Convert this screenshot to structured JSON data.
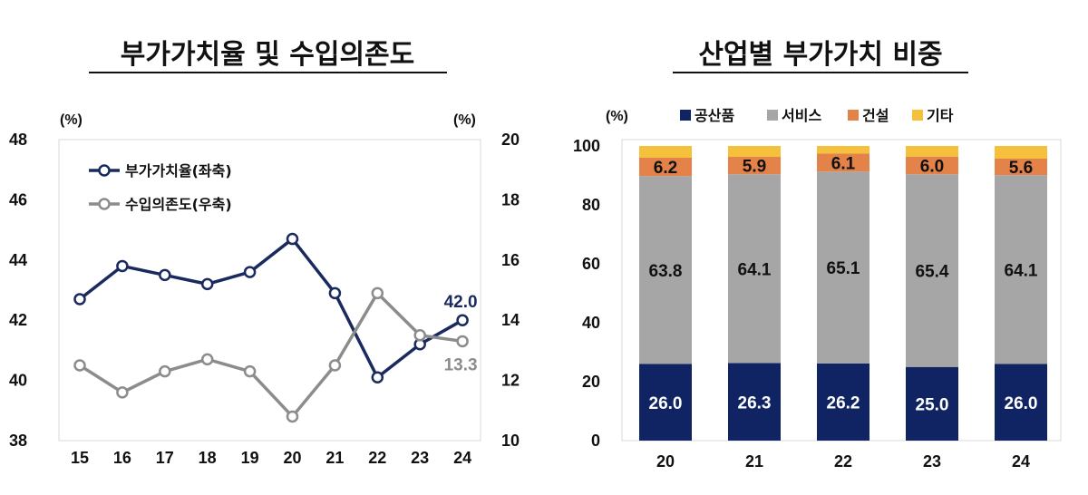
{
  "chart_data": [
    {
      "type": "line",
      "title": "부가가치율 및 수입의존도",
      "categories": [
        "15",
        "16",
        "17",
        "18",
        "19",
        "20",
        "21",
        "22",
        "23",
        "24"
      ],
      "left_axis": {
        "unit": "(%)",
        "ylim": [
          38,
          48
        ],
        "ticks": [
          "38",
          "40",
          "42",
          "44",
          "46",
          "48"
        ]
      },
      "right_axis": {
        "unit": "(%)",
        "ylim": [
          10,
          20
        ],
        "ticks": [
          "10",
          "12",
          "14",
          "16",
          "18",
          "20"
        ]
      },
      "series": [
        {
          "name": "부가가치율(좌축)",
          "axis": "left",
          "color": "#1b2a5e",
          "values": [
            42.7,
            43.8,
            43.5,
            43.2,
            43.6,
            44.7,
            42.9,
            40.1,
            41.2,
            42.0
          ],
          "end_label": "42.0"
        },
        {
          "name": "수입의존도(우축)",
          "axis": "right",
          "color": "#8c8c8c",
          "values": [
            12.5,
            11.6,
            12.3,
            12.7,
            12.3,
            10.8,
            12.5,
            14.9,
            13.5,
            13.3
          ],
          "end_label": "13.3"
        }
      ],
      "legend_placement": "top-left",
      "grid": false
    },
    {
      "type": "bar",
      "stacked": true,
      "title": "산업별 부가가치 비중",
      "categories": [
        "20",
        "21",
        "22",
        "23",
        "24"
      ],
      "y_axis": {
        "unit": "(%)",
        "ylim": [
          0,
          100
        ],
        "ticks": [
          "0",
          "20",
          "40",
          "60",
          "80",
          "100"
        ]
      },
      "series": [
        {
          "name": "공산품",
          "color": "#102463",
          "label_color": "#ffffff",
          "values": [
            26.0,
            26.3,
            26.2,
            25.0,
            26.0
          ],
          "labels": [
            "26.0",
            "26.3",
            "26.2",
            "25.0",
            "26.0"
          ]
        },
        {
          "name": "서비스",
          "color": "#a6a6a6",
          "label_color": "#111111",
          "values": [
            63.8,
            64.1,
            65.1,
            65.4,
            64.1
          ],
          "labels": [
            "63.8",
            "64.1",
            "65.1",
            "65.4",
            "64.1"
          ]
        },
        {
          "name": "건설",
          "color": "#e3834a",
          "label_color": "#111111",
          "values": [
            6.2,
            5.9,
            6.1,
            6.0,
            5.6
          ],
          "labels": [
            "6.2",
            "5.9",
            "6.1",
            "6.0",
            "5.6"
          ]
        },
        {
          "name": "기타",
          "color": "#f5c13c",
          "label_color": "#111111",
          "values": [
            4.0,
            3.7,
            2.6,
            3.6,
            4.3
          ],
          "labels": [
            "",
            "",
            "",
            "",
            ""
          ]
        }
      ],
      "legend_placement": "top",
      "grid": false
    }
  ]
}
